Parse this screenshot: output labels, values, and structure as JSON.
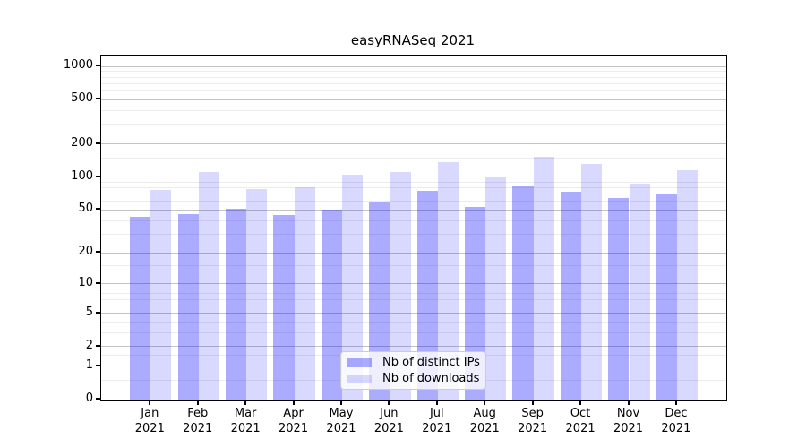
{
  "chart_data": {
    "type": "bar",
    "title": "easyRNASeq 2021",
    "categories": [
      "Jan 2021",
      "Feb 2021",
      "Mar 2021",
      "Apr 2021",
      "May 2021",
      "Jun 2021",
      "Jul 2021",
      "Aug 2021",
      "Sep 2021",
      "Oct 2021",
      "Nov 2021",
      "Dec 2021"
    ],
    "series": [
      {
        "name": "Nb of distinct IPs",
        "color": "rgba(0,0,255,0.33)",
        "color_on_white": "#aaaaf6",
        "values": [
          43,
          46,
          51,
          45,
          50,
          60,
          75,
          53,
          82,
          73,
          64,
          71
        ]
      },
      {
        "name": "Nb of downloads",
        "color": "rgba(0,0,255,0.15)",
        "color_on_white": "#d9d9f8",
        "values": [
          76,
          111,
          78,
          81,
          106,
          112,
          137,
          101,
          153,
          133,
          88,
          115
        ]
      }
    ],
    "y_axis": {
      "scale": "log10(1+value)",
      "tick_values": [
        0,
        1,
        2,
        5,
        10,
        20,
        50,
        100,
        200,
        500,
        1000
      ],
      "minor_gridline_values": [
        0.5,
        1.5,
        3,
        4,
        6,
        7,
        8,
        9,
        15,
        30,
        40,
        60,
        70,
        80,
        90,
        150,
        300,
        400,
        600,
        700,
        800,
        900
      ]
    },
    "legend": {
      "position": "lower-center"
    },
    "grid": true,
    "colors": {
      "grid_major": "#c3c3c3",
      "grid_minor": "#ececec",
      "axis": "#000000",
      "background": "#ffffff"
    }
  }
}
